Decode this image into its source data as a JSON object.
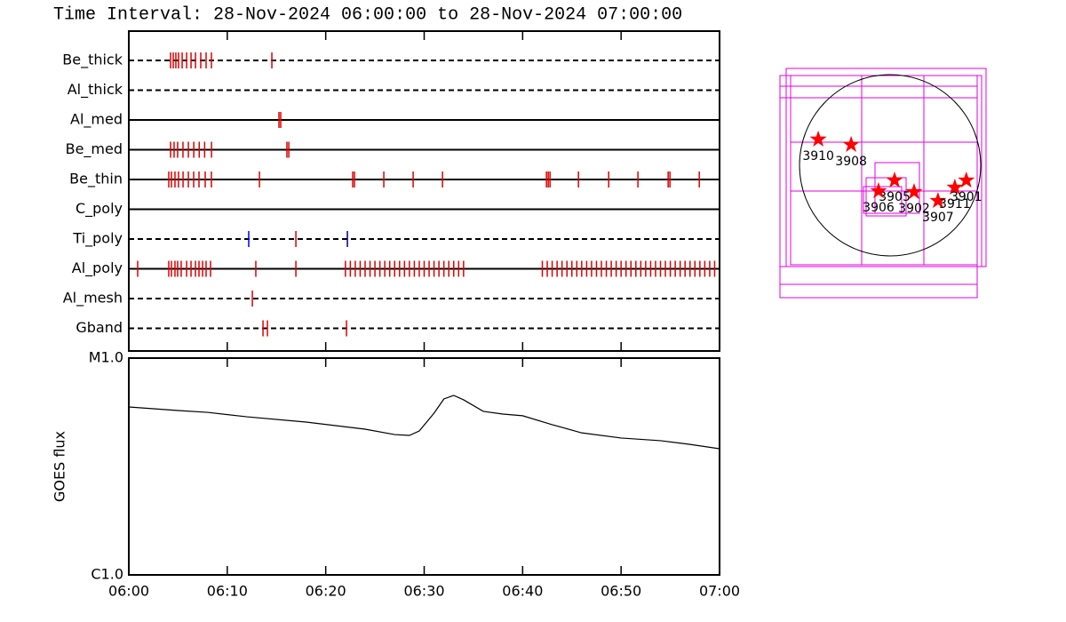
{
  "title": "Time Interval: 28-Nov-2024 06:00:00 to 28-Nov-2024 07:00:00",
  "chart_data": [
    {
      "type": "timeline",
      "xlim": [
        0,
        60
      ],
      "series": [
        {
          "name": "Be_thick",
          "style": "dashed",
          "color": "#e00000",
          "x": [
            4.24,
            4.51,
            4.78,
            5.05,
            5.42,
            5.87,
            6.32,
            6.77,
            7.31,
            7.85,
            8.39,
            14.53
          ]
        },
        {
          "name": "Al_thick",
          "style": "dashed",
          "color": "#e00000",
          "x": []
        },
        {
          "name": "Al_med",
          "style": "solid",
          "color": "#e00000",
          "x": [
            15.25,
            15.43
          ]
        },
        {
          "name": "Be_med",
          "style": "solid",
          "color": "#e00000",
          "x": [
            4.24,
            4.6,
            4.96,
            5.5,
            6.05,
            6.6,
            7.15,
            7.7,
            8.4,
            16.06,
            16.25
          ]
        },
        {
          "name": "Be_thin",
          "style": "solid",
          "color": "#e00000",
          "x": [
            4.06,
            4.33,
            4.69,
            5.05,
            5.51,
            6.05,
            6.59,
            7.13,
            7.76,
            8.39,
            13.27,
            22.74,
            22.92,
            25.9,
            28.88,
            31.86,
            42.42,
            42.6,
            42.78,
            45.67,
            48.74,
            51.71,
            54.78,
            54.96,
            57.94
          ]
        },
        {
          "name": "C_poly",
          "style": "solid",
          "color": "#e00000",
          "x": []
        },
        {
          "name": "Ti_poly",
          "style": "dashed",
          "color": "#e00000",
          "colors": [
            "#0000e0",
            "#e00000",
            "#000080"
          ],
          "x": [
            12.18,
            16.97,
            22.2
          ]
        },
        {
          "name": "Al_poly",
          "style": "solid",
          "color": "#e00000",
          "x": [
            0.9,
            4.06,
            4.33,
            4.69,
            4.96,
            5.32,
            5.87,
            6.32,
            6.77,
            7.13,
            7.49,
            7.85,
            8.3,
            12.9,
            16.97,
            22,
            22.5,
            23,
            23.5,
            24,
            24.5,
            25,
            25.5,
            26,
            26.5,
            27,
            27.5,
            28,
            28.5,
            29,
            29.5,
            30,
            30.5,
            31,
            31.5,
            32,
            32.5,
            33,
            33.5,
            34,
            42,
            42.5,
            43,
            43.5,
            44,
            44.5,
            45,
            45.5,
            46,
            46.5,
            47,
            47.5,
            48,
            48.5,
            49,
            49.5,
            50,
            50.5,
            51,
            51.5,
            52,
            52.5,
            53,
            53.5,
            54,
            54.5,
            55,
            55.5,
            56,
            56.5,
            57,
            57.5,
            58,
            58.5,
            59,
            59.5
          ]
        },
        {
          "name": "Al_mesh",
          "style": "dashed",
          "color": "#e00000",
          "x": [
            12.55
          ]
        },
        {
          "name": "Gband",
          "style": "dashed",
          "color": "#e00000",
          "x": [
            13.63,
            14.08,
            22.11
          ]
        }
      ]
    },
    {
      "type": "line",
      "ylabel": "GOES flux",
      "log": true,
      "color": "#000000",
      "xlim": [
        0,
        60
      ],
      "xticks": [
        {
          "value": 0,
          "label": "06:00"
        },
        {
          "value": 10,
          "label": "06:10"
        },
        {
          "value": 20,
          "label": "06:20"
        },
        {
          "value": 30,
          "label": "06:30"
        },
        {
          "value": 40,
          "label": "06:40"
        },
        {
          "value": 50,
          "label": "06:50"
        },
        {
          "value": 60,
          "label": "07:00"
        }
      ],
      "ylim": [
        1e-06,
        1e-05
      ],
      "yticks": [
        {
          "value": 1e-06,
          "label": "C1.0"
        },
        {
          "value": 1e-05,
          "label": "M1.0"
        }
      ],
      "x": [
        0,
        5,
        8,
        12,
        18,
        24,
        27,
        28.5,
        29.5,
        31,
        32,
        33,
        34,
        36,
        38,
        40,
        43,
        46,
        50,
        54,
        57,
        60
      ],
      "values": [
        5.95e-06,
        5.73e-06,
        5.62e-06,
        5.36e-06,
        5.07e-06,
        4.7e-06,
        4.44e-06,
        4.4e-06,
        4.61e-06,
        5.57e-06,
        6.48e-06,
        6.73e-06,
        6.42e-06,
        5.68e-06,
        5.52e-06,
        5.42e-06,
        4.93e-06,
        4.52e-06,
        4.28e-06,
        4.16e-06,
        4e-06,
        3.82e-06
      ]
    },
    {
      "type": "map",
      "color": "#ff0000",
      "xlim": [
        -1200,
        1200
      ],
      "ylim": [
        -1500,
        1300
      ],
      "labels": [
        "3910",
        "3908",
        "3905",
        "3906",
        "3902",
        "3907",
        "3911",
        "3901"
      ],
      "x": [
        -770,
        -418,
        48,
        -124,
        257,
        513,
        694,
        817
      ],
      "y": [
        276,
        219,
        -162,
        -276,
        -285,
        -380,
        -238,
        -162
      ]
    }
  ]
}
